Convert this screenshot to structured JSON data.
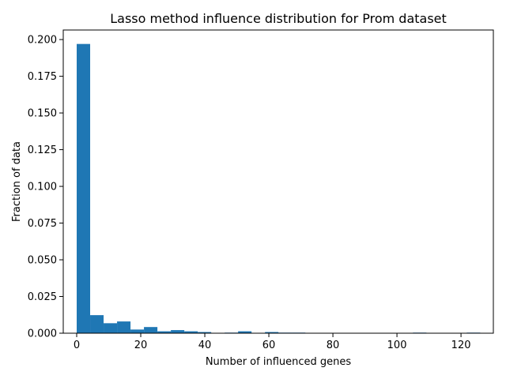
{
  "chart_data": {
    "type": "bar",
    "title": "Lasso method influence distribution for Prom dataset",
    "xlabel": "Number of influenced genes",
    "ylabel": "Fraction of data",
    "xlim": [
      -4.2,
      130.1
    ],
    "ylim": [
      0,
      0.2065
    ],
    "xticks": [
      "0",
      "20",
      "40",
      "60",
      "80",
      "100",
      "120"
    ],
    "xtick_values": [
      0,
      20,
      40,
      60,
      80,
      100,
      120
    ],
    "yticks": [
      "0.000",
      "0.025",
      "0.050",
      "0.075",
      "0.100",
      "0.125",
      "0.150",
      "0.175",
      "0.200"
    ],
    "ytick_values": [
      0,
      0.025,
      0.05,
      0.075,
      0.1,
      0.125,
      0.15,
      0.175,
      0.2
    ],
    "bin_width": 4.2,
    "bins": [
      {
        "x0": 0.0,
        "value": 0.197
      },
      {
        "x0": 4.2,
        "value": 0.0123
      },
      {
        "x0": 8.4,
        "value": 0.0068
      },
      {
        "x0": 12.6,
        "value": 0.008
      },
      {
        "x0": 16.8,
        "value": 0.0025
      },
      {
        "x0": 21.0,
        "value": 0.0042
      },
      {
        "x0": 25.2,
        "value": 0.0013
      },
      {
        "x0": 29.4,
        "value": 0.0021
      },
      {
        "x0": 33.6,
        "value": 0.0013
      },
      {
        "x0": 37.8,
        "value": 0.0008
      },
      {
        "x0": 46.2,
        "value": 0.0004
      },
      {
        "x0": 50.4,
        "value": 0.0013
      },
      {
        "x0": 58.8,
        "value": 0.0008
      },
      {
        "x0": 63.0,
        "value": 0.0004
      },
      {
        "x0": 67.2,
        "value": 0.0004
      },
      {
        "x0": 105.0,
        "value": 0.0004
      },
      {
        "x0": 121.8,
        "value": 0.0004
      }
    ],
    "bar_color": "#1f77b4",
    "grid": false,
    "legend": "none"
  }
}
